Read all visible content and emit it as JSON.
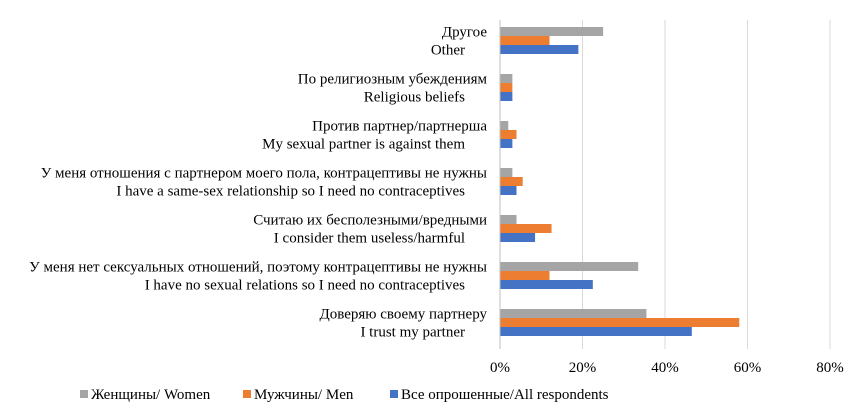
{
  "chart_data": {
    "type": "bar",
    "orientation": "horizontal",
    "categories": [
      {
        "ru": "Другое",
        "en": "Other"
      },
      {
        "ru": "По религиозным убеждениям",
        "en": "Religious beliefs"
      },
      {
        "ru": "Против партнер/партнерша",
        "en": "My sexual partner is against them"
      },
      {
        "ru": "У меня отношения с партнером моего пола, контрацептивы не нужны",
        "en": "I have a same-sex relationship so I need no contraceptives"
      },
      {
        "ru": "Считаю их бесполезными/вредными",
        "en": "I consider them useless/harmful"
      },
      {
        "ru": "У меня нет сексуальных отношений, поэтому контрацептивы не нужны",
        "en": "I have no sexual relations so I need no contraceptives"
      },
      {
        "ru": "Доверяю своему партнеру",
        "en": "I trust my partner"
      }
    ],
    "series": [
      {
        "name": "Женщины/ Women",
        "color": "#A5A5A5",
        "values": [
          25,
          3,
          2,
          3,
          4,
          33.5,
          35.5
        ]
      },
      {
        "name": "Мужчины/ Men",
        "color": "#ED7D31",
        "values": [
          12,
          3,
          4,
          5.5,
          12.5,
          12,
          58
        ]
      },
      {
        "name": "Все опрошенные/All respondents",
        "color": "#4472C4",
        "values": [
          19,
          3,
          3,
          4,
          8.5,
          22.5,
          46.5
        ]
      }
    ],
    "x_ticks": [
      "0%",
      "20%",
      "40%",
      "60%",
      "80%"
    ],
    "xlim": [
      0,
      80
    ],
    "grid": true,
    "legend_position": "bottom"
  }
}
